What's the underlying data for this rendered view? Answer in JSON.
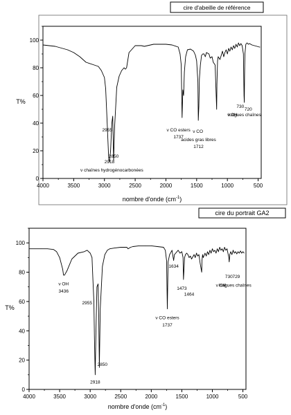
{
  "chart_data": [
    {
      "type": "line",
      "title": "cire d'abeille de référence",
      "ylabel": "T%",
      "xlabel_main": "nombre d'onde (cm",
      "xlabel_sup": "-1",
      "xlabel_end": ")",
      "xlim": [
        4000,
        450
      ],
      "ylim": [
        0,
        110
      ],
      "xticks": [
        4000,
        3500,
        3000,
        2500,
        2000,
        1500,
        1000,
        500
      ],
      "yticks": [
        0,
        20,
        40,
        60,
        80,
        100
      ],
      "x": [
        4000,
        3800,
        3600,
        3500,
        3400,
        3300,
        3200,
        3100,
        3050,
        3000,
        2980,
        2955,
        2930,
        2918,
        2900,
        2880,
        2865,
        2850,
        2835,
        2800,
        2760,
        2720,
        2680,
        2660,
        2640,
        2600,
        2500,
        2400,
        2350,
        2300,
        2200,
        2100,
        2000,
        1900,
        1800,
        1770,
        1750,
        1737,
        1725,
        1712,
        1700,
        1680,
        1650,
        1600,
        1550,
        1520,
        1500,
        1480,
        1473,
        1464,
        1455,
        1440,
        1420,
        1400,
        1380,
        1360,
        1340,
        1300,
        1280,
        1250,
        1230,
        1200,
        1175,
        1170,
        1160,
        1150,
        1120,
        1100,
        1080,
        1060,
        1040,
        1020,
        1000,
        980,
        960,
        940,
        920,
        900,
        880,
        860,
        840,
        820,
        800,
        780,
        760,
        740,
        730,
        725,
        720,
        715,
        700,
        680,
        660,
        640,
        620,
        600,
        560,
        520,
        480,
        470
      ],
      "y": [
        96.5,
        95.5,
        93,
        91,
        88,
        84,
        82.5,
        81,
        78,
        73,
        65,
        40,
        14,
        12,
        20,
        40,
        45,
        13,
        37,
        66,
        74,
        78,
        80,
        79,
        80,
        91,
        96,
        96,
        95.5,
        96,
        97,
        97,
        97,
        96.5,
        95,
        90,
        82,
        44,
        64,
        60,
        77,
        88,
        93,
        93.5,
        92,
        89,
        85,
        70,
        42,
        52,
        72,
        82,
        89,
        90,
        90,
        88,
        91,
        90,
        87,
        88,
        84,
        82,
        50,
        68,
        85,
        88,
        86,
        89,
        92,
        88,
        91,
        93,
        90,
        94,
        92,
        95,
        93,
        96,
        94,
        97,
        95,
        98,
        96,
        97.5,
        96,
        90,
        60,
        55,
        75,
        90,
        97,
        98,
        97,
        97.5,
        97,
        96.5,
        96,
        95.5,
        95,
        95
      ],
      "annotations": [
        {
          "text": "2955",
          "x": 2955,
          "y": 34
        },
        {
          "text": "2918",
          "x": 2918,
          "y": 11
        },
        {
          "text": "2850",
          "x": 2850,
          "y": 15
        },
        {
          "text": "ν chaînes hydrogénocarbonées",
          "x": 2880,
          "y": 5
        },
        {
          "text": "ν CO esters",
          "x": 1795,
          "y": 34
        },
        {
          "text": "1737",
          "x": 1795,
          "y": 29
        },
        {
          "text": "ν CO",
          "x": 1480,
          "y": 33
        },
        {
          "text": "acides gras libres",
          "x": 1470,
          "y": 27
        },
        {
          "text": "1712",
          "x": 1470,
          "y": 22
        },
        {
          "text": "730",
          "x": 790,
          "y": 51
        },
        {
          "text": "720",
          "x": 660,
          "y": 49
        },
        {
          "text": "ν CH",
          "x": 920,
          "y": 45
        },
        {
          "text": "2",
          "x": 900,
          "y": 45
        },
        {
          "text": "longues chaînes",
          "x": 720,
          "y": 45
        }
      ]
    },
    {
      "type": "line",
      "title": "cire du portrait GA2",
      "ylabel": "T%",
      "xlabel_main": "nombre d'onde (cm",
      "xlabel_sup": "-1",
      "xlabel_end": ")",
      "xlim": [
        4000,
        450
      ],
      "ylim": [
        0,
        110
      ],
      "xticks": [
        4000,
        3500,
        3000,
        2500,
        2000,
        1500,
        1000,
        500
      ],
      "yticks": [
        0,
        20,
        40,
        60,
        80,
        100
      ],
      "x": [
        4000,
        3800,
        3700,
        3600,
        3550,
        3500,
        3450,
        3436,
        3420,
        3380,
        3300,
        3200,
        3100,
        3050,
        3000,
        2970,
        2955,
        2940,
        2930,
        2918,
        2905,
        2890,
        2870,
        2860,
        2850,
        2835,
        2800,
        2760,
        2720,
        2680,
        2600,
        2500,
        2400,
        2380,
        2340,
        2300,
        2200,
        2100,
        2000,
        1900,
        1800,
        1770,
        1750,
        1737,
        1725,
        1700,
        1660,
        1650,
        1634,
        1620,
        1600,
        1560,
        1530,
        1500,
        1480,
        1473,
        1464,
        1455,
        1440,
        1420,
        1400,
        1380,
        1360,
        1340,
        1300,
        1280,
        1260,
        1240,
        1220,
        1200,
        1175,
        1170,
        1160,
        1150,
        1120,
        1100,
        1080,
        1060,
        1040,
        1020,
        1000,
        980,
        960,
        940,
        920,
        900,
        880,
        860,
        840,
        820,
        800,
        780,
        760,
        740,
        730,
        725,
        720,
        715,
        700,
        680,
        660,
        640,
        620,
        600,
        580,
        560,
        540,
        520,
        500,
        480
      ],
      "y": [
        96,
        96,
        96,
        95.5,
        94,
        90,
        82,
        78,
        78,
        81,
        89,
        93,
        94,
        95,
        93,
        90,
        75,
        60,
        35,
        10,
        40,
        70,
        72,
        50,
        15,
        55,
        84,
        92,
        95,
        96,
        96.5,
        97,
        97,
        96,
        97,
        97.5,
        98,
        98,
        98,
        97.5,
        97,
        95,
        88,
        55,
        87,
        92,
        95,
        92,
        88,
        92,
        93,
        95,
        93,
        94,
        90,
        75,
        82,
        90,
        92,
        93,
        92,
        90,
        91,
        89,
        92,
        90,
        93,
        91,
        92,
        86,
        80,
        88,
        92,
        90,
        93,
        91,
        94,
        92,
        95,
        93,
        96,
        94,
        95,
        93,
        96,
        94,
        97,
        95,
        96,
        94,
        97,
        95,
        96,
        92,
        90,
        87,
        89,
        92,
        94,
        92,
        95,
        93,
        94,
        92.5,
        94,
        93,
        94.5,
        93,
        94,
        93
      ]
    },
    {
      "annotations": [
        {
          "text": "ν OH",
          "x": 3436,
          "y": 71
        },
        {
          "text": "3436",
          "x": 3436,
          "y": 66
        },
        {
          "text": "2955",
          "x": 3050,
          "y": 58
        },
        {
          "text": "2918",
          "x": 2918,
          "y": 4
        },
        {
          "text": "2850",
          "x": 2800,
          "y": 16
        },
        {
          "text": "ν CO esters",
          "x": 1737,
          "y": 48
        },
        {
          "text": "1737",
          "x": 1737,
          "y": 43
        },
        {
          "text": "1634",
          "x": 1634,
          "y": 83
        },
        {
          "text": "1473",
          "x": 1500,
          "y": 68
        },
        {
          "text": "1464",
          "x": 1380,
          "y": 64
        },
        {
          "text": "730",
          "x": 730,
          "y": 76
        },
        {
          "text": "729",
          "x": 610,
          "y": 76
        },
        {
          "text": "ν CH",
          "x": 860,
          "y": 70
        },
        {
          "text": "2",
          "x": 800,
          "y": 70
        },
        {
          "text": "longues chaînes",
          "x": 630,
          "y": 70
        }
      ]
    }
  ]
}
